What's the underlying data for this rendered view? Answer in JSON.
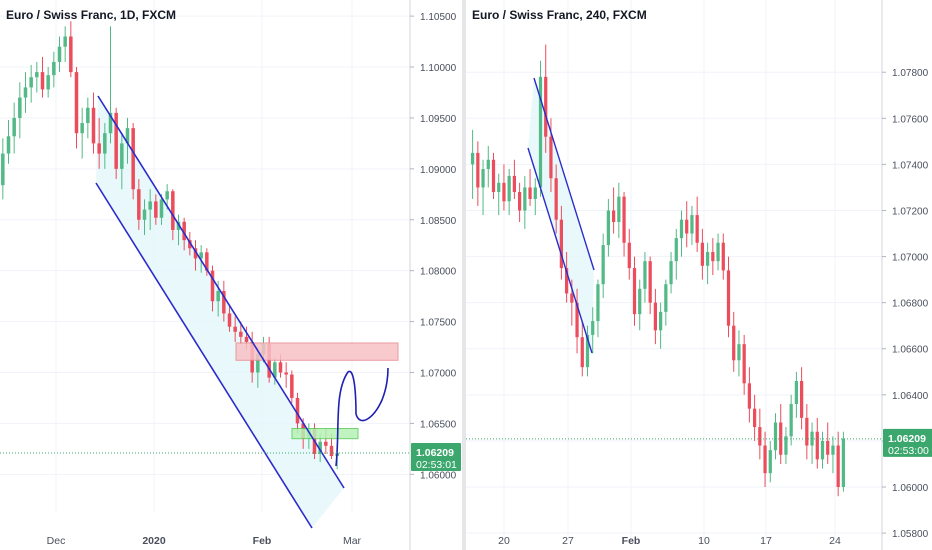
{
  "chart_data": [
    {
      "type": "candlestick",
      "title": "Euro / Swiss Franc, 1D, FXCM",
      "symbol": "Euro / Swiss Franc",
      "timeframe": "1D",
      "broker": "FXCM",
      "xlabel": "",
      "ylabel": "",
      "ylim": [
        1.0563,
        1.1056
      ],
      "yaxis_position": "right",
      "y_ticks": [
        "1.10500",
        "1.10000",
        "1.09500",
        "1.09000",
        "1.08500",
        "1.08000",
        "1.07500",
        "1.07000",
        "1.06500",
        "1.06000"
      ],
      "x_tick_labels": [
        "Dec",
        "2020",
        "Feb",
        "Mar"
      ],
      "last_price": "1.06209",
      "countdown": "02:53:01",
      "ohlc": [
        [
          1.0884,
          1.093,
          1.087,
          1.0915
        ],
        [
          1.0915,
          1.0948,
          1.0905,
          1.0932
        ],
        [
          1.0932,
          1.0965,
          1.0915,
          1.095
        ],
        [
          1.095,
          1.0985,
          1.093,
          1.097
        ],
        [
          1.097,
          1.0995,
          1.0955,
          1.098
        ],
        [
          1.098,
          1.1002,
          1.0965,
          1.099
        ],
        [
          1.099,
          1.1005,
          1.0975,
          1.0995
        ],
        [
          1.0995,
          1.101,
          1.097,
          1.0978
        ],
        [
          1.0978,
          1.1,
          1.097,
          1.0992
        ],
        [
          1.0992,
          1.1015,
          1.098,
          1.1005
        ],
        [
          1.1005,
          1.103,
          1.0995,
          1.102
        ],
        [
          1.102,
          1.104,
          1.1005,
          1.103
        ],
        [
          1.103,
          1.1045,
          1.099,
          1.0995
        ],
        [
          1.0995,
          1.1,
          1.092,
          1.0935
        ],
        [
          1.0935,
          1.096,
          1.091,
          1.0945
        ],
        [
          1.0945,
          1.097,
          1.093,
          1.096
        ],
        [
          1.096,
          1.0975,
          1.0915,
          1.0925
        ],
        [
          1.0925,
          1.095,
          1.09,
          1.0915
        ],
        [
          1.0915,
          1.0945,
          1.09,
          1.0935
        ],
        [
          1.0935,
          1.104,
          1.0925,
          1.0955
        ],
        [
          1.0955,
          1.096,
          1.089,
          1.09
        ],
        [
          1.09,
          1.0935,
          1.088,
          1.0925
        ],
        [
          1.0925,
          1.095,
          1.0905,
          1.094
        ],
        [
          1.094,
          1.0945,
          1.087,
          1.088
        ],
        [
          1.088,
          1.089,
          1.084,
          1.085
        ],
        [
          1.085,
          1.087,
          1.0835,
          1.086
        ],
        [
          1.086,
          1.088,
          1.084,
          1.0868
        ],
        [
          1.0868,
          1.0875,
          1.0845,
          1.0852
        ],
        [
          1.0852,
          1.0875,
          1.0845,
          1.087
        ],
        [
          1.087,
          1.0885,
          1.086,
          1.0878
        ],
        [
          1.0878,
          1.088,
          1.083,
          1.084
        ],
        [
          1.084,
          1.0855,
          1.0825,
          1.0848
        ],
        [
          1.0848,
          1.0852,
          1.082,
          1.083
        ],
        [
          1.083,
          1.0838,
          1.0815,
          1.0822
        ],
        [
          1.0822,
          1.083,
          1.08,
          1.0812
        ],
        [
          1.0812,
          1.0825,
          1.0798,
          1.0818
        ],
        [
          1.0818,
          1.0822,
          1.0795,
          1.08
        ],
        [
          1.08,
          1.0805,
          1.076,
          1.077
        ],
        [
          1.077,
          1.079,
          1.0755,
          1.078
        ],
        [
          1.078,
          1.079,
          1.075,
          1.0758
        ],
        [
          1.0758,
          1.0765,
          1.074,
          1.0745
        ],
        [
          1.0745,
          1.0755,
          1.073,
          1.074
        ],
        [
          1.074,
          1.075,
          1.0728,
          1.0735
        ],
        [
          1.0735,
          1.0745,
          1.0722,
          1.073
        ],
        [
          1.073,
          1.074,
          1.069,
          1.07
        ],
        [
          1.07,
          1.0725,
          1.0685,
          1.0718
        ],
        [
          1.0718,
          1.0735,
          1.071,
          1.0728
        ],
        [
          1.0728,
          1.0735,
          1.069,
          1.0695
        ],
        [
          1.0695,
          1.0715,
          1.0688,
          1.071
        ],
        [
          1.071,
          1.0718,
          1.0695,
          1.07
        ],
        [
          1.07,
          1.071,
          1.0685,
          1.0698
        ],
        [
          1.0698,
          1.0702,
          1.067,
          1.0675
        ],
        [
          1.0675,
          1.068,
          1.064,
          1.065
        ],
        [
          1.065,
          1.0655,
          1.0625,
          1.0635
        ],
        [
          1.0635,
          1.065,
          1.0625,
          1.0645
        ],
        [
          1.0645,
          1.065,
          1.0615,
          1.062
        ],
        [
          1.062,
          1.064,
          1.0612,
          1.0632
        ],
        [
          1.0632,
          1.0645,
          1.062,
          1.0628
        ],
        [
          1.0628,
          1.064,
          1.0615,
          1.0618
        ],
        [
          1.0618,
          1.063,
          1.0605,
          1.0621
        ]
      ],
      "drawings": [
        {
          "type": "parallel-channel",
          "color": "#2b2bcc"
        },
        {
          "type": "rectangle",
          "label": "resistance zone",
          "range": [
            1.0712,
            1.0729
          ],
          "color": "#f8c1c5"
        },
        {
          "type": "rectangle",
          "label": "support zone",
          "range": [
            1.0635,
            1.0645
          ],
          "color": "#b6f2b5"
        },
        {
          "type": "freehand-projection",
          "color": "#1f1fb4"
        }
      ],
      "colors": {
        "up": "#53b987",
        "down": "#eb4d5c",
        "price_tag": "#3ba76d",
        "grid": "#f0f3fa"
      }
    },
    {
      "type": "candlestick",
      "title": "Euro / Swiss Franc, 240, FXCM",
      "symbol": "Euro / Swiss Franc",
      "timeframe": "240",
      "broker": "FXCM",
      "xlabel": "",
      "ylabel": "",
      "ylim": [
        1.0577,
        1.0807
      ],
      "yaxis_position": "right",
      "y_ticks": [
        "1.07800",
        "1.07600",
        "1.07400",
        "1.07200",
        "1.07000",
        "1.06800",
        "1.06600",
        "1.06400",
        "1.06200",
        "1.06000",
        "1.05800"
      ],
      "x_tick_labels": [
        "20",
        "27",
        "Feb",
        "10",
        "17",
        "24"
      ],
      "last_price": "1.06209",
      "countdown": "02:53:00",
      "ohlc": [
        [
          1.074,
          1.0755,
          1.0725,
          1.0745
        ],
        [
          1.0745,
          1.075,
          1.0722,
          1.073
        ],
        [
          1.073,
          1.0742,
          1.0718,
          1.0738
        ],
        [
          1.0738,
          1.0748,
          1.073,
          1.0742
        ],
        [
          1.0742,
          1.0745,
          1.0725,
          1.0728
        ],
        [
          1.0728,
          1.0736,
          1.0718,
          1.0732
        ],
        [
          1.0732,
          1.074,
          1.072,
          1.0724
        ],
        [
          1.0724,
          1.0738,
          1.0718,
          1.0735
        ],
        [
          1.0735,
          1.0742,
          1.0725,
          1.0728
        ],
        [
          1.0728,
          1.0732,
          1.0715,
          1.072
        ],
        [
          1.072,
          1.0735,
          1.0712,
          1.073
        ],
        [
          1.073,
          1.0738,
          1.0722,
          1.0725
        ],
        [
          1.0725,
          1.0734,
          1.0718,
          1.073
        ],
        [
          1.073,
          1.0785,
          1.0726,
          1.0778
        ],
        [
          1.0778,
          1.0792,
          1.0745,
          1.0752
        ],
        [
          1.0752,
          1.076,
          1.0728,
          1.0734
        ],
        [
          1.0734,
          1.074,
          1.071,
          1.0716
        ],
        [
          1.0716,
          1.0722,
          1.069,
          1.0695
        ],
        [
          1.0695,
          1.0702,
          1.068,
          1.0684
        ],
        [
          1.0684,
          1.069,
          1.067,
          1.068
        ],
        [
          1.068,
          1.0686,
          1.0658,
          1.0665
        ],
        [
          1.0665,
          1.0672,
          1.0648,
          1.0652
        ],
        [
          1.0652,
          1.067,
          1.0648,
          1.0666
        ],
        [
          1.0666,
          1.0678,
          1.0658,
          1.0672
        ],
        [
          1.0672,
          1.069,
          1.0665,
          1.0688
        ],
        [
          1.0688,
          1.071,
          1.0682,
          1.0705
        ],
        [
          1.0705,
          1.0725,
          1.07,
          1.072
        ],
        [
          1.072,
          1.073,
          1.071,
          1.0715
        ],
        [
          1.0715,
          1.0732,
          1.0708,
          1.0726
        ],
        [
          1.0726,
          1.0728,
          1.07,
          1.0706
        ],
        [
          1.0706,
          1.0712,
          1.069,
          1.0695
        ],
        [
          1.0695,
          1.07,
          1.067,
          1.0675
        ],
        [
          1.0675,
          1.069,
          1.0668,
          1.0686
        ],
        [
          1.0686,
          1.0702,
          1.068,
          1.0698
        ],
        [
          1.0698,
          1.07,
          1.0675,
          1.068
        ],
        [
          1.068,
          1.0686,
          1.0662,
          1.0668
        ],
        [
          1.0668,
          1.068,
          1.066,
          1.0676
        ],
        [
          1.0676,
          1.069,
          1.067,
          1.0688
        ],
        [
          1.0688,
          1.0702,
          1.0684,
          1.0698
        ],
        [
          1.0698,
          1.0712,
          1.069,
          1.0708
        ],
        [
          1.0708,
          1.072,
          1.07,
          1.0716
        ],
        [
          1.0716,
          1.0724,
          1.0704,
          1.071
        ],
        [
          1.071,
          1.0722,
          1.0705,
          1.0718
        ],
        [
          1.0718,
          1.0726,
          1.0702,
          1.0706
        ],
        [
          1.0706,
          1.0712,
          1.069,
          1.0696
        ],
        [
          1.0696,
          1.0706,
          1.0688,
          1.0702
        ],
        [
          1.0702,
          1.0708,
          1.0692,
          1.0698
        ],
        [
          1.0698,
          1.071,
          1.0694,
          1.0706
        ],
        [
          1.0706,
          1.071,
          1.069,
          1.0694
        ],
        [
          1.0694,
          1.07,
          1.0665,
          1.067
        ],
        [
          1.067,
          1.0676,
          1.065,
          1.0655
        ],
        [
          1.0655,
          1.0668,
          1.0648,
          1.0662
        ],
        [
          1.0662,
          1.0666,
          1.064,
          1.0645
        ],
        [
          1.0645,
          1.0652,
          1.0628,
          1.0634
        ],
        [
          1.0634,
          1.064,
          1.062,
          1.0626
        ],
        [
          1.0626,
          1.0634,
          1.0612,
          1.0618
        ],
        [
          1.0618,
          1.0624,
          1.06,
          1.0606
        ],
        [
          1.0606,
          1.062,
          1.0602,
          1.0616
        ],
        [
          1.0616,
          1.0632,
          1.0612,
          1.0628
        ],
        [
          1.0628,
          1.0636,
          1.061,
          1.0614
        ],
        [
          1.0614,
          1.0626,
          1.061,
          1.0622
        ],
        [
          1.0622,
          1.064,
          1.0618,
          1.0636
        ],
        [
          1.0636,
          1.065,
          1.063,
          1.0646
        ],
        [
          1.0646,
          1.0652,
          1.0625,
          1.063
        ],
        [
          1.063,
          1.0636,
          1.0612,
          1.0618
        ],
        [
          1.0618,
          1.0628,
          1.061,
          1.0624
        ],
        [
          1.0624,
          1.063,
          1.0608,
          1.0612
        ],
        [
          1.0612,
          1.0624,
          1.0608,
          1.062
        ],
        [
          1.062,
          1.0628,
          1.061,
          1.0614
        ],
        [
          1.0614,
          1.0622,
          1.0606,
          1.0618
        ],
        [
          1.0618,
          1.0624,
          1.0596,
          1.06
        ],
        [
          1.06,
          1.0624,
          1.0598,
          1.0621
        ]
      ],
      "drawings": [
        {
          "type": "parallel-channel",
          "color": "#2b2bcc"
        }
      ],
      "colors": {
        "up": "#53b987",
        "down": "#eb4d5c",
        "price_tag": "#3ba76d",
        "grid": "#f0f3fa"
      }
    }
  ]
}
